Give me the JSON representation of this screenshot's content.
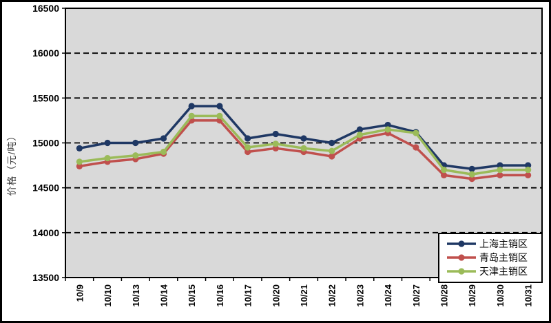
{
  "chart_data": {
    "type": "line",
    "title": "",
    "ylabel": "价格（元/吨）",
    "xlabel": "",
    "ylim": [
      13500,
      16500
    ],
    "yticks": [
      13500,
      14000,
      14500,
      15000,
      15500,
      16000,
      16500
    ],
    "grid": "horizontal-dashed",
    "legend_position": "inside-bottom-right",
    "plot_bg_color": "#D9D9D9",
    "gridline_color": "#000000",
    "categories": [
      "10/9",
      "10/10",
      "10/13",
      "10/14",
      "10/15",
      "10/16",
      "10/17",
      "10/20",
      "10/21",
      "10/22",
      "10/23",
      "10/24",
      "10/27",
      "10/28",
      "10/29",
      "10/30",
      "10/31"
    ],
    "series": [
      {
        "id": "shanghai",
        "name": "上海主销区",
        "color": "#1F3864",
        "values": [
          14940,
          15000,
          15000,
          15050,
          15410,
          15410,
          15050,
          15100,
          15050,
          15000,
          15150,
          15200,
          15120,
          14750,
          14710,
          14750,
          14750
        ]
      },
      {
        "id": "qingdao",
        "name": "青岛主销区",
        "color": "#C0504D",
        "values": [
          14740,
          14790,
          14820,
          14880,
          15250,
          15250,
          14900,
          14940,
          14900,
          14850,
          15050,
          15110,
          14950,
          14640,
          14600,
          14640,
          14640
        ]
      },
      {
        "id": "tianjin",
        "name": "天津主销区",
        "color": "#9BBB59",
        "values": [
          14790,
          14830,
          14860,
          14900,
          15300,
          15300,
          14950,
          14990,
          14940,
          14910,
          15090,
          15150,
          15110,
          14700,
          14650,
          14700,
          14700
        ]
      }
    ]
  }
}
